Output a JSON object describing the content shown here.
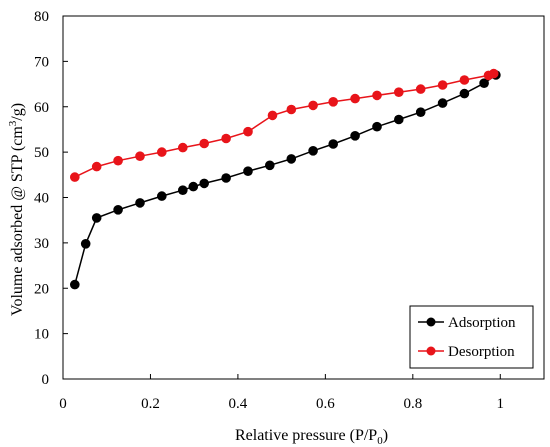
{
  "chart_data": {
    "type": "line",
    "xlabel_main": "Relative pressure (P/P",
    "xlabel_sub": "0",
    "xlabel_end": ")",
    "ylabel_main": "Volume adsorbed @ STP (cm",
    "ylabel_sup": "3",
    "ylabel_end": "/g)",
    "xlim": [
      0,
      1.1
    ],
    "ylim": [
      0,
      80
    ],
    "xticks": [
      0,
      0.2,
      0.4,
      0.6,
      0.8,
      1
    ],
    "xtick_labels": [
      "0",
      "0.2",
      "0.4",
      "0.6",
      "0.8",
      "1"
    ],
    "yticks": [
      0,
      10,
      20,
      30,
      40,
      50,
      60,
      70,
      80
    ],
    "ytick_labels": [
      "0",
      "10",
      "20",
      "30",
      "40",
      "50",
      "60",
      "70",
      "80"
    ],
    "grid": false,
    "legend_position": "bottom-right",
    "series": [
      {
        "name": "Adsorption",
        "color": "#000000",
        "marker": "circle",
        "x": [
          0.027,
          0.052,
          0.077,
          0.126,
          0.176,
          0.226,
          0.274,
          0.298,
          0.323,
          0.373,
          0.423,
          0.473,
          0.522,
          0.572,
          0.618,
          0.668,
          0.718,
          0.768,
          0.818,
          0.868,
          0.918,
          0.963,
          0.99
        ],
        "y": [
          20.8,
          29.8,
          35.5,
          37.3,
          38.8,
          40.3,
          41.6,
          42.4,
          43.1,
          44.3,
          45.8,
          47.1,
          48.5,
          50.3,
          51.8,
          53.6,
          55.6,
          57.2,
          58.8,
          60.8,
          62.9,
          65.2,
          67.0
        ]
      },
      {
        "name": "Desorption",
        "color": "#e8141a",
        "marker": "circle",
        "x": [
          0.027,
          0.077,
          0.126,
          0.176,
          0.226,
          0.274,
          0.323,
          0.373,
          0.423,
          0.479,
          0.522,
          0.572,
          0.618,
          0.668,
          0.718,
          0.768,
          0.818,
          0.868,
          0.918,
          0.973,
          0.985
        ],
        "y": [
          44.5,
          46.8,
          48.1,
          49.1,
          50.0,
          51.0,
          51.9,
          53.0,
          54.5,
          58.1,
          59.4,
          60.3,
          61.1,
          61.8,
          62.5,
          63.2,
          63.9,
          64.8,
          65.9,
          66.9,
          67.3
        ]
      }
    ]
  }
}
